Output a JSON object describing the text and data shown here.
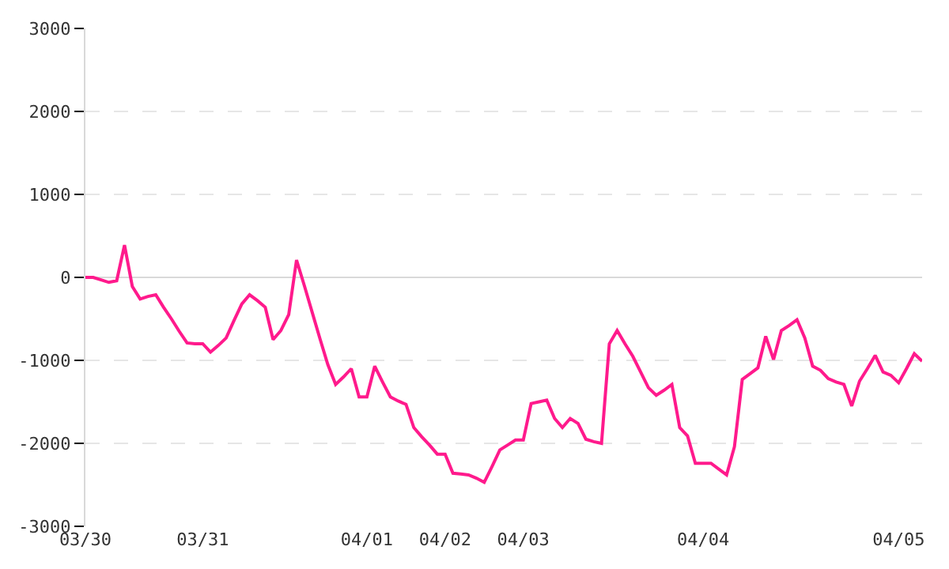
{
  "chart_data": {
    "type": "line",
    "categories": [
      "03/30",
      null,
      null,
      null,
      null,
      null,
      null,
      null,
      null,
      null,
      null,
      null,
      null,
      null,
      null,
      "03/31",
      null,
      null,
      null,
      null,
      null,
      null,
      null,
      null,
      null,
      null,
      null,
      null,
      null,
      null,
      null,
      null,
      null,
      null,
      null,
      null,
      "04/01",
      null,
      null,
      null,
      null,
      null,
      null,
      null,
      null,
      null,
      "04/02",
      null,
      null,
      null,
      null,
      null,
      null,
      null,
      null,
      null,
      "04/03",
      null,
      null,
      null,
      null,
      null,
      null,
      null,
      null,
      null,
      null,
      null,
      null,
      null,
      null,
      null,
      null,
      null,
      null,
      null,
      null,
      null,
      null,
      "04/04",
      null,
      null,
      null,
      null,
      null,
      null,
      null,
      null,
      null,
      null,
      null,
      null,
      null,
      null,
      null,
      null,
      null,
      null,
      null,
      null,
      null,
      null,
      null,
      null,
      "04/05",
      null,
      null,
      null
    ],
    "series": [
      {
        "color": "#ff1a8c",
        "values": [
          0,
          0,
          -30,
          -60,
          -40,
          390,
          -110,
          -260,
          -230,
          -210,
          -360,
          -500,
          -650,
          -790,
          -800,
          -800,
          -900,
          -820,
          -730,
          -520,
          -320,
          -210,
          -280,
          -360,
          -750,
          -640,
          -450,
          210,
          -100,
          -420,
          -740,
          -1050,
          -1290,
          -1200,
          -1100,
          -1440,
          -1440,
          -1070,
          -1260,
          -1440,
          -1490,
          -1530,
          -1810,
          -1920,
          -2020,
          -2130,
          -2130,
          -2360,
          -2370,
          -2380,
          -2420,
          -2470,
          -2280,
          -2080,
          -2020,
          -1960,
          -1960,
          -1520,
          -1500,
          -1480,
          -1700,
          -1810,
          -1700,
          -1760,
          -1950,
          -1980,
          -2000,
          -800,
          -640,
          -800,
          -950,
          -1140,
          -1330,
          -1420,
          -1360,
          -1290,
          -1810,
          -1910,
          -2240,
          -2240,
          -2240,
          -2310,
          -2380,
          -2040,
          -1230,
          -1160,
          -1090,
          -710,
          -990,
          -640,
          -580,
          -510,
          -730,
          -1070,
          -1120,
          -1220,
          -1260,
          -1290,
          -1550,
          -1250,
          -1100,
          -940,
          -1140,
          -1180,
          -1270,
          -1100,
          -920,
          -1010
        ]
      }
    ],
    "ylim": [
      -3000,
      3000
    ],
    "yticks": [
      -3000,
      -2000,
      -1000,
      0,
      1000,
      2000,
      3000
    ],
    "grid": "y",
    "marker": "none",
    "line_style": "solid"
  }
}
